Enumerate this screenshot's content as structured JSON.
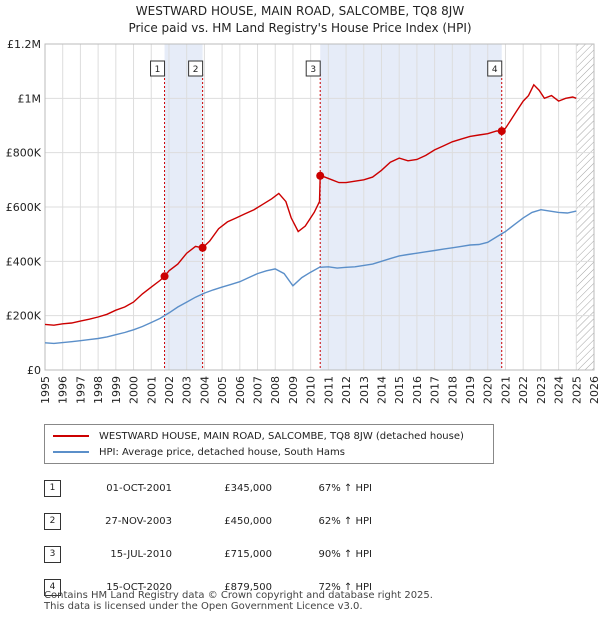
{
  "title": {
    "line1": "WESTWARD HOUSE, MAIN ROAD, SALCOMBE, TQ8 8JW",
    "line2": "Price paid vs. HM Land Registry's House Price Index (HPI)"
  },
  "chart_data": {
    "type": "line",
    "title": "WESTWARD HOUSE, MAIN ROAD, SALCOMBE, TQ8 8JW",
    "subtitle": "Price paid vs. HM Land Registry's House Price Index (HPI)",
    "xlim": [
      1995,
      2026
    ],
    "ylim": [
      0,
      1200000
    ],
    "x_ticks": [
      "1995",
      "1996",
      "1997",
      "1998",
      "1999",
      "2000",
      "2001",
      "2002",
      "2003",
      "2004",
      "2005",
      "2006",
      "2007",
      "2008",
      "2009",
      "2010",
      "2011",
      "2012",
      "2013",
      "2014",
      "2015",
      "2016",
      "2017",
      "2018",
      "2019",
      "2020",
      "2021",
      "2022",
      "2023",
      "2024",
      "2025",
      "2026"
    ],
    "y_ticks": [
      {
        "value": 0,
        "label": "£0"
      },
      {
        "value": 200000,
        "label": "£200K"
      },
      {
        "value": 400000,
        "label": "£400K"
      },
      {
        "value": 600000,
        "label": "£600K"
      },
      {
        "value": 800000,
        "label": "£800K"
      },
      {
        "value": 1000000,
        "label": "£1M"
      },
      {
        "value": 1200000,
        "label": "£1.2M"
      }
    ],
    "grid": true,
    "colors": {
      "property": "#cc0000",
      "hpi": "#5b8fc9",
      "shade": "#dde6f5",
      "marker_line": "#cc0000",
      "future_hatch": "#999999"
    },
    "shaded_ranges": [
      [
        2001.75,
        2003.9
      ],
      [
        2010.54,
        2020.79
      ]
    ],
    "hatch_from": 2025.0,
    "series": [
      {
        "name": "WESTWARD HOUSE, MAIN ROAD, SALCOMBE, TQ8 8JW (detached house)",
        "color": "#cc0000",
        "x": [
          1995.0,
          1995.5,
          1996.0,
          1996.5,
          1997.0,
          1997.5,
          1998.0,
          1998.5,
          1999.0,
          1999.5,
          2000.0,
          2000.5,
          2001.0,
          2001.5,
          2001.75,
          2002.0,
          2002.5,
          2003.0,
          2003.5,
          2003.9,
          2004.3,
          2004.8,
          2005.3,
          2005.8,
          2006.3,
          2006.8,
          2007.3,
          2007.8,
          2008.2,
          2008.6,
          2008.9,
          2009.3,
          2009.7,
          2010.2,
          2010.5,
          2010.54,
          2010.8,
          2011.2,
          2011.6,
          2012.0,
          2012.5,
          2013.0,
          2013.5,
          2014.0,
          2014.5,
          2015.0,
          2015.5,
          2016.0,
          2016.5,
          2017.0,
          2017.5,
          2018.0,
          2018.5,
          2019.0,
          2019.5,
          2020.0,
          2020.5,
          2020.79,
          2021.0,
          2021.3,
          2021.6,
          2022.0,
          2022.3,
          2022.6,
          2022.9,
          2023.2,
          2023.6,
          2024.0,
          2024.4,
          2024.8,
          2025.0
        ],
        "y": [
          168000,
          165000,
          170000,
          173000,
          180000,
          187000,
          195000,
          205000,
          220000,
          232000,
          250000,
          280000,
          305000,
          330000,
          345000,
          365000,
          390000,
          430000,
          455000,
          450000,
          475000,
          520000,
          545000,
          560000,
          575000,
          590000,
          610000,
          630000,
          650000,
          620000,
          560000,
          510000,
          530000,
          580000,
          620000,
          715000,
          710000,
          700000,
          690000,
          690000,
          695000,
          700000,
          710000,
          735000,
          765000,
          780000,
          770000,
          775000,
          790000,
          810000,
          825000,
          840000,
          850000,
          860000,
          865000,
          870000,
          880000,
          879500,
          890000,
          920000,
          950000,
          990000,
          1010000,
          1050000,
          1030000,
          1000000,
          1010000,
          990000,
          1000000,
          1005000,
          1000000
        ]
      },
      {
        "name": "HPI: Average price, detached house, South Hams",
        "color": "#5b8fc9",
        "x": [
          1995.0,
          1995.5,
          1996.0,
          1996.5,
          1997.0,
          1997.5,
          1998.0,
          1998.5,
          1999.0,
          1999.5,
          2000.0,
          2000.5,
          2001.0,
          2001.5,
          2002.0,
          2002.5,
          2003.0,
          2003.5,
          2004.0,
          2004.5,
          2005.0,
          2005.5,
          2006.0,
          2006.5,
          2007.0,
          2007.5,
          2008.0,
          2008.5,
          2009.0,
          2009.5,
          2010.0,
          2010.5,
          2011.0,
          2011.5,
          2012.0,
          2012.5,
          2013.0,
          2013.5,
          2014.0,
          2014.5,
          2015.0,
          2015.5,
          2016.0,
          2016.5,
          2017.0,
          2017.5,
          2018.0,
          2018.5,
          2019.0,
          2019.5,
          2020.0,
          2020.5,
          2021.0,
          2021.5,
          2022.0,
          2022.5,
          2023.0,
          2023.5,
          2024.0,
          2024.5,
          2025.0
        ],
        "y": [
          100000,
          98000,
          101000,
          104000,
          108000,
          112000,
          116000,
          122000,
          130000,
          138000,
          148000,
          160000,
          175000,
          190000,
          210000,
          232000,
          250000,
          268000,
          283000,
          295000,
          305000,
          315000,
          325000,
          340000,
          355000,
          365000,
          372000,
          355000,
          310000,
          340000,
          360000,
          378000,
          380000,
          375000,
          378000,
          380000,
          385000,
          390000,
          400000,
          410000,
          420000,
          425000,
          430000,
          435000,
          440000,
          445000,
          450000,
          455000,
          460000,
          462000,
          470000,
          490000,
          510000,
          535000,
          560000,
          580000,
          590000,
          585000,
          580000,
          578000,
          585000
        ]
      }
    ],
    "sale_markers": [
      {
        "label": "1",
        "x": 2001.75,
        "price": 345000
      },
      {
        "label": "2",
        "x": 2003.9,
        "price": 450000
      },
      {
        "label": "3",
        "x": 2010.54,
        "price": 715000
      },
      {
        "label": "4",
        "x": 2020.79,
        "price": 879500
      }
    ]
  },
  "legend": {
    "items": [
      {
        "label": "WESTWARD HOUSE, MAIN ROAD, SALCOMBE, TQ8 8JW (detached house)",
        "color": "#cc0000"
      },
      {
        "label": "HPI: Average price, detached house, South Hams",
        "color": "#5b8fc9"
      }
    ]
  },
  "transactions": [
    {
      "num": "1",
      "date": "01-OCT-2001",
      "price": "£345,000",
      "hpi": "67% ↑ HPI"
    },
    {
      "num": "2",
      "date": "27-NOV-2003",
      "price": "£450,000",
      "hpi": "62% ↑ HPI"
    },
    {
      "num": "3",
      "date": "15-JUL-2010",
      "price": "£715,000",
      "hpi": "90% ↑ HPI"
    },
    {
      "num": "4",
      "date": "15-OCT-2020",
      "price": "£879,500",
      "hpi": "72% ↑ HPI"
    }
  ],
  "footer": {
    "line1": "Contains HM Land Registry data © Crown copyright and database right 2025.",
    "line2": "This data is licensed under the Open Government Licence v3.0."
  }
}
